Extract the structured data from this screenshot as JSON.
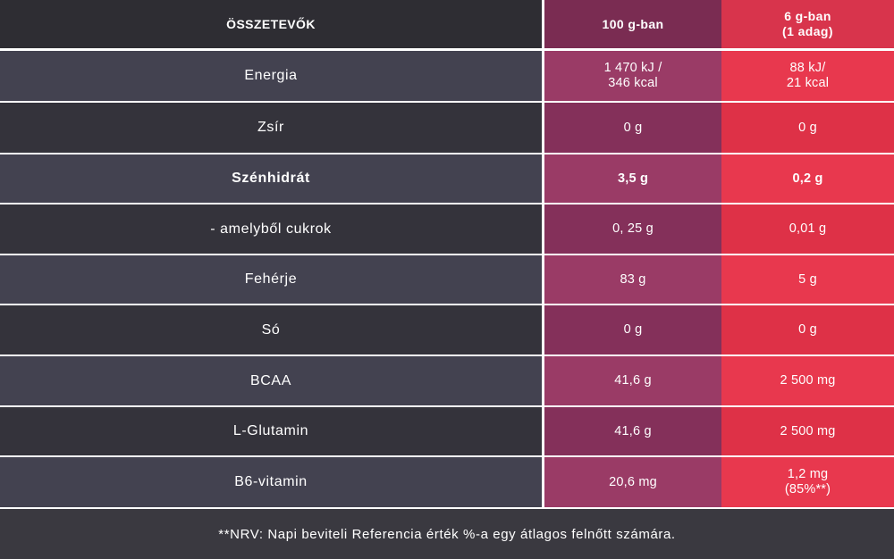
{
  "header": {
    "ingredients": "ÖSSZETEVŐK",
    "per100": "100 g-ban",
    "perServing_line1": "6 g-ban",
    "perServing_line2": "(1 adag)"
  },
  "rows": [
    {
      "name": "Energia",
      "per100_l1": "1 470 kJ /",
      "per100_l2": "346 kcal",
      "perServing_l1": "88 kJ/",
      "perServing_l2": "21 kcal"
    },
    {
      "name": "Zsír",
      "per100_l1": "0 g",
      "per100_l2": "",
      "perServing_l1": "0 g",
      "perServing_l2": ""
    },
    {
      "name": "Szénhidrát",
      "per100_l1": "3,5 g",
      "per100_l2": "",
      "perServing_l1": "0,2 g",
      "perServing_l2": ""
    },
    {
      "name": "- amelyből cukrok",
      "per100_l1": "0, 25 g",
      "per100_l2": "",
      "perServing_l1": "0,01 g",
      "perServing_l2": ""
    },
    {
      "name": "Fehérje",
      "per100_l1": "83 g",
      "per100_l2": "",
      "perServing_l1": "5 g",
      "perServing_l2": ""
    },
    {
      "name": "Só",
      "per100_l1": "0 g",
      "per100_l2": "",
      "perServing_l1": "0 g",
      "perServing_l2": ""
    },
    {
      "name": "BCAA",
      "per100_l1": "41,6 g",
      "per100_l2": "",
      "perServing_l1": "2 500 mg",
      "perServing_l2": ""
    },
    {
      "name": "L-Glutamin",
      "per100_l1": "41,6 g",
      "per100_l2": "",
      "perServing_l1": "2 500 mg",
      "perServing_l2": ""
    },
    {
      "name": "B6-vitamin",
      "per100_l1": "20,6 mg",
      "per100_l2": "",
      "perServing_l1": "1,2 mg",
      "perServing_l2": "(85%**)"
    }
  ],
  "footer": "**NRV: Napi beviteli Referencia érték %-a egy átlagos felnőtt számára.",
  "colors": {
    "header_name": "#2e2d33",
    "header_per100": "#7a2c52",
    "header_serving": "#d8344c",
    "row_name_even": "#434250",
    "row_name_odd": "#34333b",
    "row_per100_even": "#9a3b66",
    "row_per100_odd": "#84305a",
    "row_serving_even": "#e8384e",
    "row_serving_odd": "#de3147"
  }
}
